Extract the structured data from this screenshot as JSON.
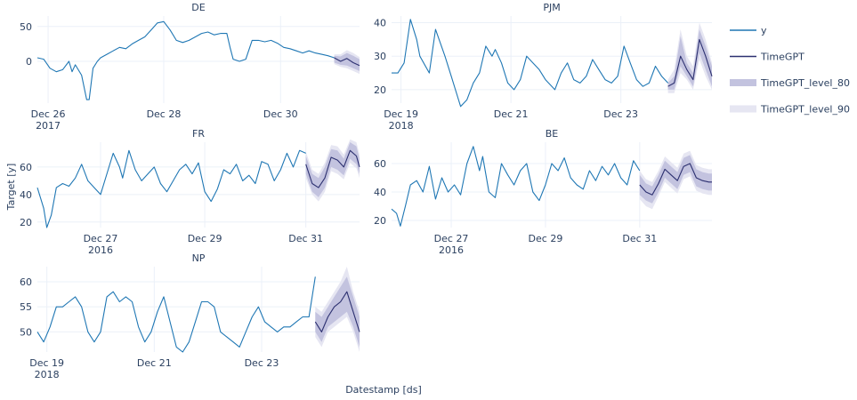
{
  "figure": {
    "xlabel": "Datestamp [ds]",
    "ylabel": "Target [y]"
  },
  "legend": [
    {
      "name": "y",
      "color": "#1f77b4",
      "kind": "line"
    },
    {
      "name": "TimeGPT",
      "color": "#2c3070",
      "kind": "line"
    },
    {
      "name": "TimeGPT_level_80",
      "color": "#c3c3df",
      "kind": "band"
    },
    {
      "name": "TimeGPT_level_90",
      "color": "#e6e6f2",
      "kind": "band"
    }
  ],
  "chart_data": [
    {
      "type": "line",
      "title": "DE",
      "xlim": [
        0,
        5.1
      ],
      "ylim": [
        -60,
        65
      ],
      "yticks": [
        0,
        50
      ],
      "xticks": [
        {
          "x": 0.17,
          "label": "Dec 26",
          "sub": "2017"
        },
        {
          "x": 2.0,
          "label": "Dec 28",
          "sub": ""
        },
        {
          "x": 3.85,
          "label": "Dec 30",
          "sub": ""
        }
      ],
      "y_x": [
        0.0,
        0.1,
        0.2,
        0.3,
        0.4,
        0.5,
        0.55,
        0.6,
        0.7,
        0.78,
        0.82,
        0.88,
        0.95,
        1.0,
        1.1,
        1.2,
        1.3,
        1.4,
        1.5,
        1.6,
        1.7,
        1.8,
        1.9,
        2.0,
        2.1,
        2.2,
        2.3,
        2.4,
        2.5,
        2.6,
        2.7,
        2.8,
        2.9,
        3.0,
        3.05,
        3.1,
        3.2,
        3.3,
        3.4,
        3.5,
        3.6,
        3.7,
        3.8,
        3.9,
        4.0,
        4.1,
        4.2,
        4.3,
        4.4,
        4.5,
        4.6,
        4.7
      ],
      "y": [
        5,
        3,
        -10,
        -15,
        -12,
        0,
        -15,
        -5,
        -20,
        -55,
        -55,
        -10,
        0,
        5,
        10,
        15,
        20,
        18,
        25,
        30,
        35,
        45,
        55,
        57,
        45,
        30,
        27,
        30,
        35,
        40,
        42,
        38,
        40,
        40,
        20,
        3,
        0,
        3,
        30,
        30,
        28,
        30,
        26,
        20,
        18,
        15,
        12,
        15,
        12,
        10,
        8,
        5
      ],
      "f_x": [
        4.7,
        4.8,
        4.9,
        5.0,
        5.1
      ],
      "f": [
        5,
        0,
        4,
        -2,
        -6
      ],
      "lo80": [
        -2,
        -5,
        -6,
        -10,
        -14
      ],
      "hi80": [
        8,
        7,
        12,
        8,
        3
      ],
      "lo90": [
        -4,
        -8,
        -10,
        -14,
        -18
      ],
      "hi90": [
        10,
        10,
        16,
        12,
        6
      ]
    },
    {
      "type": "line",
      "title": "PJM",
      "xlim": [
        0,
        5.1
      ],
      "ylim": [
        16,
        42
      ],
      "yticks": [
        20,
        30,
        40
      ],
      "xticks": [
        {
          "x": 0.15,
          "label": "Dec 19",
          "sub": "2018"
        },
        {
          "x": 1.9,
          "label": "Dec 21",
          "sub": ""
        },
        {
          "x": 3.65,
          "label": "Dec 23",
          "sub": ""
        }
      ],
      "y_x": [
        0.0,
        0.1,
        0.2,
        0.3,
        0.4,
        0.45,
        0.6,
        0.7,
        0.85,
        0.95,
        1.05,
        1.1,
        1.2,
        1.3,
        1.4,
        1.5,
        1.6,
        1.65,
        1.75,
        1.85,
        1.95,
        2.05,
        2.15,
        2.25,
        2.35,
        2.45,
        2.6,
        2.7,
        2.8,
        2.9,
        3.0,
        3.1,
        3.2,
        3.3,
        3.4,
        3.5,
        3.6,
        3.7,
        3.8,
        3.9,
        4.0,
        4.1,
        4.2,
        4.3,
        4.4
      ],
      "y": [
        25,
        25,
        28,
        41,
        35,
        30,
        25,
        38,
        30,
        24,
        18,
        15,
        17,
        22,
        25,
        33,
        30,
        32,
        28,
        22,
        20,
        23,
        30,
        28,
        26,
        23,
        20,
        25,
        28,
        23,
        22,
        24,
        29,
        26,
        23,
        22,
        24,
        33,
        28,
        23,
        21,
        22,
        27,
        24,
        22
      ],
      "f_x": [
        4.4,
        4.5,
        4.6,
        4.7,
        4.8,
        4.9,
        5.0,
        5.1
      ],
      "f": [
        21,
        22,
        30,
        26,
        23,
        35,
        30,
        24
      ],
      "lo80": [
        20,
        20,
        27,
        24,
        21,
        31,
        26,
        21
      ],
      "hi80": [
        22,
        24,
        36,
        28,
        25,
        38,
        33,
        27
      ],
      "lo90": [
        19,
        19,
        25,
        23,
        20,
        29,
        24,
        20
      ],
      "hi90": [
        23,
        26,
        38,
        30,
        27,
        40,
        35,
        28
      ]
    },
    {
      "type": "line",
      "title": "FR",
      "xlim": [
        0,
        5.1
      ],
      "ylim": [
        16,
        78
      ],
      "yticks": [
        20,
        40,
        60
      ],
      "xticks": [
        {
          "x": 1.0,
          "label": "Dec 27",
          "sub": "2016"
        },
        {
          "x": 2.65,
          "label": "Dec 29",
          "sub": ""
        },
        {
          "x": 4.25,
          "label": "Dec 31",
          "sub": ""
        }
      ],
      "y_x": [
        0.0,
        0.1,
        0.15,
        0.22,
        0.3,
        0.4,
        0.5,
        0.6,
        0.7,
        0.8,
        0.9,
        1.0,
        1.1,
        1.2,
        1.3,
        1.35,
        1.45,
        1.55,
        1.65,
        1.75,
        1.85,
        1.95,
        2.05,
        2.15,
        2.25,
        2.35,
        2.45,
        2.55,
        2.65,
        2.75,
        2.85,
        2.95,
        3.05,
        3.15,
        3.25,
        3.35,
        3.45,
        3.55,
        3.65,
        3.75,
        3.85,
        3.95,
        4.05,
        4.15,
        4.25
      ],
      "y": [
        45,
        30,
        16,
        25,
        45,
        48,
        46,
        52,
        62,
        50,
        45,
        40,
        55,
        70,
        60,
        52,
        72,
        58,
        50,
        55,
        60,
        48,
        42,
        50,
        58,
        62,
        55,
        63,
        42,
        35,
        44,
        58,
        55,
        62,
        50,
        54,
        48,
        64,
        62,
        50,
        58,
        70,
        60,
        72,
        70
      ],
      "f_x": [
        4.25,
        4.35,
        4.45,
        4.55,
        4.65,
        4.75,
        4.85,
        4.95,
        5.05,
        5.1
      ],
      "f": [
        62,
        48,
        45,
        52,
        67,
        65,
        60,
        72,
        68,
        60
      ],
      "lo80": [
        55,
        42,
        38,
        45,
        60,
        58,
        54,
        66,
        62,
        55
      ],
      "hi80": [
        68,
        55,
        52,
        60,
        73,
        72,
        66,
        78,
        75,
        66
      ],
      "lo90": [
        52,
        40,
        35,
        42,
        57,
        55,
        51,
        63,
        59,
        52
      ],
      "hi90": [
        71,
        58,
        55,
        63,
        76,
        75,
        69,
        80,
        78,
        69
      ]
    },
    {
      "type": "line",
      "title": "BE",
      "xlim": [
        0,
        5.1
      ],
      "ylim": [
        15,
        75
      ],
      "yticks": [
        20,
        40,
        60
      ],
      "xticks": [
        {
          "x": 0.95,
          "label": "Dec 27",
          "sub": "2016"
        },
        {
          "x": 2.45,
          "label": "Dec 29",
          "sub": ""
        },
        {
          "x": 3.95,
          "label": "Dec 31",
          "sub": ""
        }
      ],
      "y_x": [
        0.0,
        0.08,
        0.14,
        0.22,
        0.3,
        0.4,
        0.5,
        0.6,
        0.7,
        0.8,
        0.9,
        1.0,
        1.1,
        1.2,
        1.3,
        1.4,
        1.45,
        1.55,
        1.65,
        1.75,
        1.85,
        1.95,
        2.05,
        2.15,
        2.25,
        2.35,
        2.45,
        2.55,
        2.65,
        2.75,
        2.85,
        2.95,
        3.05,
        3.15,
        3.25,
        3.35,
        3.45,
        3.55,
        3.65,
        3.75,
        3.85,
        3.95
      ],
      "y": [
        28,
        25,
        16,
        30,
        45,
        48,
        40,
        58,
        35,
        50,
        40,
        45,
        38,
        60,
        72,
        55,
        65,
        40,
        36,
        60,
        52,
        45,
        55,
        60,
        40,
        34,
        45,
        60,
        55,
        64,
        50,
        45,
        42,
        55,
        48,
        58,
        52,
        60,
        50,
        45,
        62,
        55
      ],
      "f_x": [
        3.95,
        4.05,
        4.15,
        4.25,
        4.35,
        4.45,
        4.55,
        4.65,
        4.75,
        4.85,
        4.95,
        5.05,
        5.1
      ],
      "f": [
        45,
        40,
        38,
        46,
        56,
        52,
        48,
        58,
        60,
        50,
        48,
        47,
        47
      ],
      "lo80": [
        38,
        34,
        32,
        40,
        50,
        46,
        42,
        52,
        54,
        44,
        42,
        41,
        41
      ],
      "hi80": [
        52,
        46,
        44,
        52,
        62,
        58,
        54,
        64,
        66,
        56,
        54,
        53,
        53
      ],
      "lo90": [
        35,
        30,
        28,
        37,
        47,
        43,
        39,
        49,
        51,
        41,
        39,
        38,
        38
      ],
      "hi90": [
        55,
        49,
        47,
        55,
        65,
        61,
        57,
        67,
        69,
        59,
        57,
        56,
        56
      ]
    },
    {
      "type": "line",
      "title": "NP",
      "xlim": [
        0,
        5.1
      ],
      "ylim": [
        46,
        63
      ],
      "yticks": [
        50,
        55,
        60
      ],
      "xticks": [
        {
          "x": 0.15,
          "label": "Dec 19",
          "sub": "2018"
        },
        {
          "x": 1.85,
          "label": "Dec 21",
          "sub": ""
        },
        {
          "x": 3.55,
          "label": "Dec 23",
          "sub": ""
        }
      ],
      "y_x": [
        0.0,
        0.1,
        0.2,
        0.3,
        0.4,
        0.5,
        0.6,
        0.7,
        0.8,
        0.9,
        1.0,
        1.1,
        1.2,
        1.3,
        1.4,
        1.5,
        1.6,
        1.7,
        1.8,
        1.9,
        2.0,
        2.1,
        2.2,
        2.3,
        2.4,
        2.5,
        2.6,
        2.7,
        2.8,
        2.9,
        3.0,
        3.1,
        3.2,
        3.3,
        3.4,
        3.5,
        3.6,
        3.7,
        3.8,
        3.9,
        4.0,
        4.1,
        4.2,
        4.3,
        4.4
      ],
      "y": [
        50,
        48,
        51,
        55,
        55,
        56,
        57,
        55,
        50,
        48,
        50,
        57,
        58,
        56,
        57,
        56,
        51,
        48,
        50,
        54,
        57,
        52,
        47,
        46,
        48,
        52,
        56,
        56,
        55,
        50,
        49,
        48,
        47,
        50,
        53,
        55,
        52,
        51,
        50,
        51,
        51,
        52,
        53,
        53,
        61
      ],
      "f_x": [
        4.4,
        4.5,
        4.6,
        4.7,
        4.8,
        4.9,
        5.0,
        5.1
      ],
      "f": [
        52,
        50,
        53,
        55,
        56,
        58,
        54,
        50
      ],
      "lo80": [
        50,
        48,
        51,
        52,
        53,
        54,
        51,
        47
      ],
      "hi80": [
        54,
        53,
        55,
        57,
        59,
        61,
        57,
        53
      ],
      "lo90": [
        49,
        47,
        50,
        51,
        52,
        53,
        50,
        46
      ],
      "hi90": [
        55,
        54,
        56,
        58,
        60,
        63,
        58,
        54
      ]
    }
  ]
}
